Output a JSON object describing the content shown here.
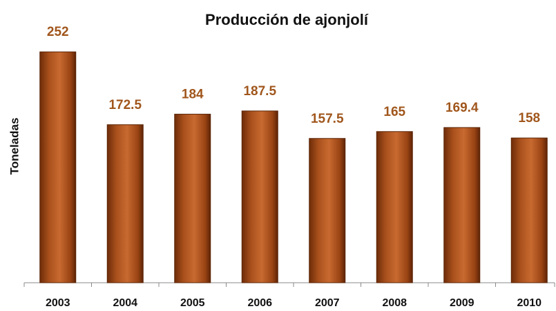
{
  "chart_data": {
    "type": "bar",
    "title": "Producción de ajonjolí",
    "y_label": "Toneladas",
    "categories": [
      "2003",
      "2004",
      "2005",
      "2006",
      "2007",
      "2008",
      "2009",
      "2010"
    ],
    "values": [
      252,
      172.5,
      184,
      187.5,
      157.5,
      165,
      169.4,
      158
    ],
    "color": "#b4561c",
    "ylim": [
      0,
      280
    ],
    "grid": false
  }
}
